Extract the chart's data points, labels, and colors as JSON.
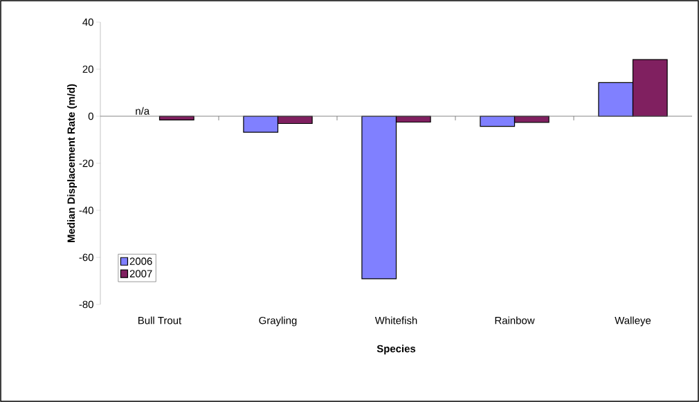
{
  "chart_data": {
    "type": "bar",
    "xlabel": "Species",
    "ylabel": "Median Displacement Rate (m/d)",
    "categories": [
      "Bull Trout",
      "Grayling",
      "Whitefish",
      "Rainbow",
      "Walleye"
    ],
    "series": [
      {
        "name": "2006",
        "color": "#8080ff",
        "values": [
          null,
          -6.8,
          -69.1,
          -4.3,
          14.3
        ]
      },
      {
        "name": "2007",
        "color": "#802060",
        "values": [
          -1.6,
          -3.1,
          -2.5,
          -2.6,
          24.1
        ]
      }
    ],
    "ylim": [
      -80,
      40
    ],
    "yticks": [
      -80,
      -60,
      -40,
      -20,
      0,
      20,
      40
    ],
    "legend": "bottom left",
    "annotations": [
      {
        "text": "n/a",
        "x": "Bull Trout",
        "y": 0
      }
    ]
  }
}
